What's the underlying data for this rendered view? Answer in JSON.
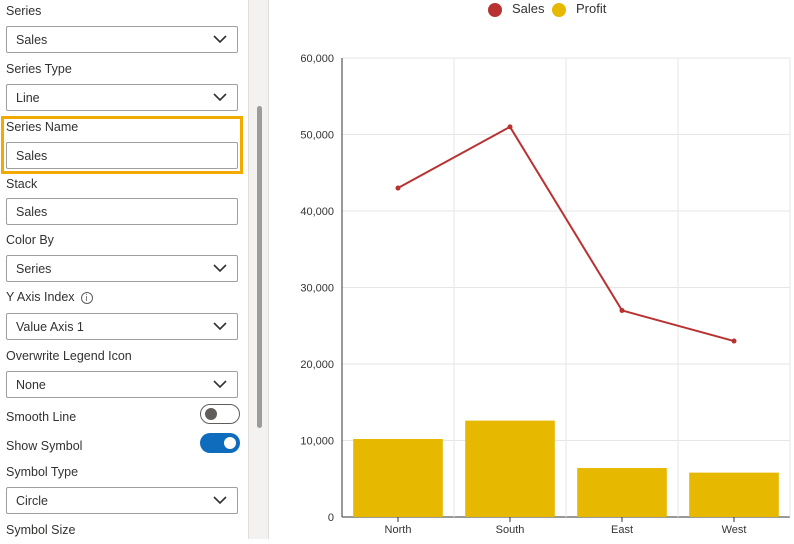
{
  "panel": {
    "series": {
      "label": "Series",
      "value": "Sales"
    },
    "series_type": {
      "label": "Series Type",
      "value": "Line"
    },
    "series_name": {
      "label": "Series Name",
      "value": "Sales"
    },
    "stack": {
      "label": "Stack",
      "value": "Sales"
    },
    "color_by": {
      "label": "Color By",
      "value": "Series"
    },
    "y_axis_index": {
      "label": "Y Axis Index",
      "value": "Value Axis 1",
      "info_glyph": "i"
    },
    "overwrite_legend_icon": {
      "label": "Overwrite Legend Icon",
      "value": "None"
    },
    "smooth_line": {
      "label": "Smooth Line",
      "on": false
    },
    "show_symbol": {
      "label": "Show Symbol",
      "on": true
    },
    "symbol_type": {
      "label": "Symbol Type",
      "value": "Circle"
    },
    "symbol_size": {
      "label": "Symbol Size"
    }
  },
  "colors": {
    "sales": "#b83232",
    "profit": "#e6b800",
    "highlight": "#f2a900",
    "toggle_on": "#0f6cbd"
  },
  "chart_data": {
    "type": "bar",
    "categories": [
      "North",
      "South",
      "East",
      "West"
    ],
    "series": [
      {
        "name": "Sales",
        "type": "line",
        "values": [
          43000,
          51000,
          27000,
          23000
        ]
      },
      {
        "name": "Profit",
        "type": "bar",
        "values": [
          10200,
          12600,
          6400,
          5800
        ]
      }
    ],
    "ylim": [
      0,
      60000
    ],
    "yticks": [
      "0",
      "10,000",
      "20,000",
      "30,000",
      "40,000",
      "50,000",
      "60,000"
    ],
    "grid": true,
    "legend_position": "top-center"
  }
}
